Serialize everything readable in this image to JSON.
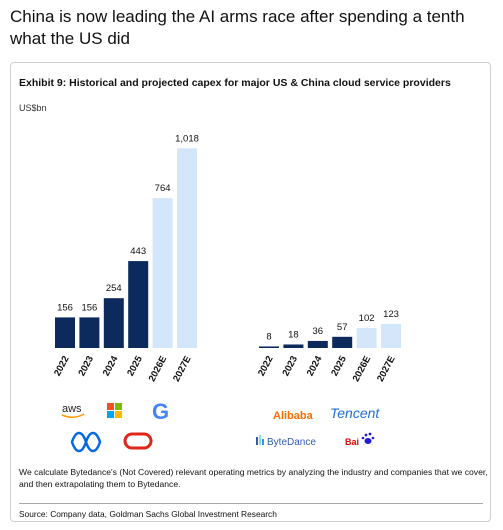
{
  "tweet_text": "China is now leading the AI arms race after spending a tenth what the US did",
  "card": {
    "title": "Exhibit 9: Historical and projected capex for major US & China cloud service providers",
    "unit": "US$bn",
    "note": "We calculate Bytedance's (Not Covered) relevant operating metrics by analyzing the industry and companies that we cover, and then extrapolating them to Bytedance.",
    "source": "Source: Company data, Goldman Sachs Global Investment Research"
  },
  "chart_data": [
    {
      "type": "bar",
      "categories": [
        "2022",
        "2023",
        "2024",
        "2025",
        "2026E",
        "2027E"
      ],
      "values": [
        156,
        156,
        254,
        443,
        764,
        1018
      ],
      "value_labels": [
        "156",
        "156",
        "254",
        "443",
        "764",
        "1,018"
      ],
      "colors": [
        "#0c2a5b",
        "#0c2a5b",
        "#0c2a5b",
        "#0c2a5b",
        "#d3e6fa",
        "#d3e6fa"
      ],
      "ylim": [
        0,
        1050
      ]
    },
    {
      "type": "bar",
      "categories": [
        "2022",
        "2023",
        "2024",
        "2025",
        "2026E",
        "2027E"
      ],
      "values": [
        8,
        18,
        36,
        57,
        102,
        123
      ],
      "colors": [
        "#0c2a5b",
        "#0c2a5b",
        "#0c2a5b",
        "#0c2a5b",
        "#d3e6fa",
        "#d3e6fa"
      ],
      "ylim": [
        0,
        1050
      ]
    }
  ],
  "logos": {
    "us": [
      "aws",
      "G"
    ],
    "china": [
      "Alibaba",
      "Tencent",
      "ByteDance",
      "Bai"
    ]
  }
}
